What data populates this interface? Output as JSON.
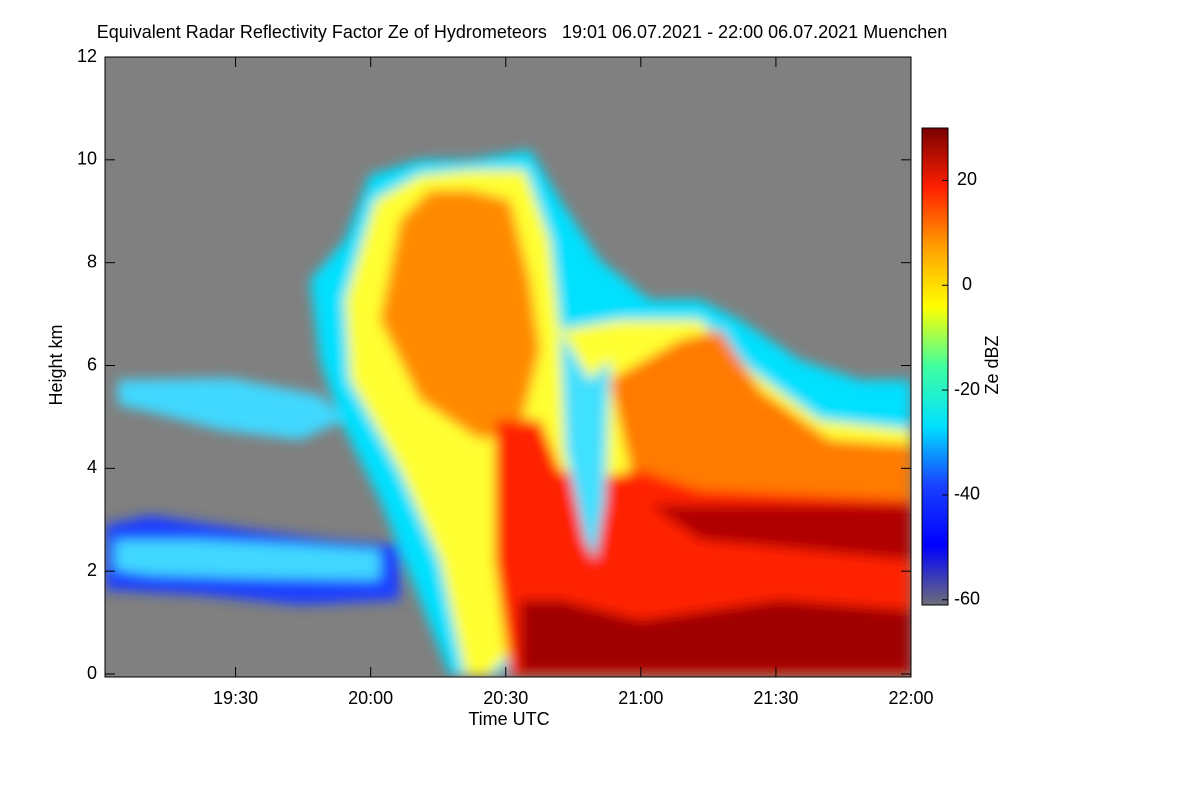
{
  "chart_data": {
    "type": "heatmap",
    "title": "Equivalent Radar Reflectivity Factor Ze of Hydrometeors   19:01 06.07.2021 - 22:00 06.07.2021 Muenchen",
    "x_label": "Time UTC",
    "y_label": "Height km",
    "colorbar_label": "Ze dBZ",
    "xlim": [
      "19:01",
      "22:00"
    ],
    "xticks": [
      "19:30",
      "20:00",
      "20:30",
      "21:00",
      "21:30",
      "22:00"
    ],
    "ylim": [
      0,
      12
    ],
    "yticks": [
      0,
      2,
      4,
      6,
      8,
      10,
      12
    ],
    "zlim": [
      -61,
      30
    ],
    "zticks": [
      -60,
      -40,
      -20,
      0,
      20
    ],
    "colorscale": [
      "#6e6e78",
      "#0000ff",
      "#1a40ff",
      "#00e0ff",
      "#40ffa0",
      "#ffff00",
      "#ffa000",
      "#ff2000",
      "#7a0000"
    ],
    "background": "#808080"
  }
}
